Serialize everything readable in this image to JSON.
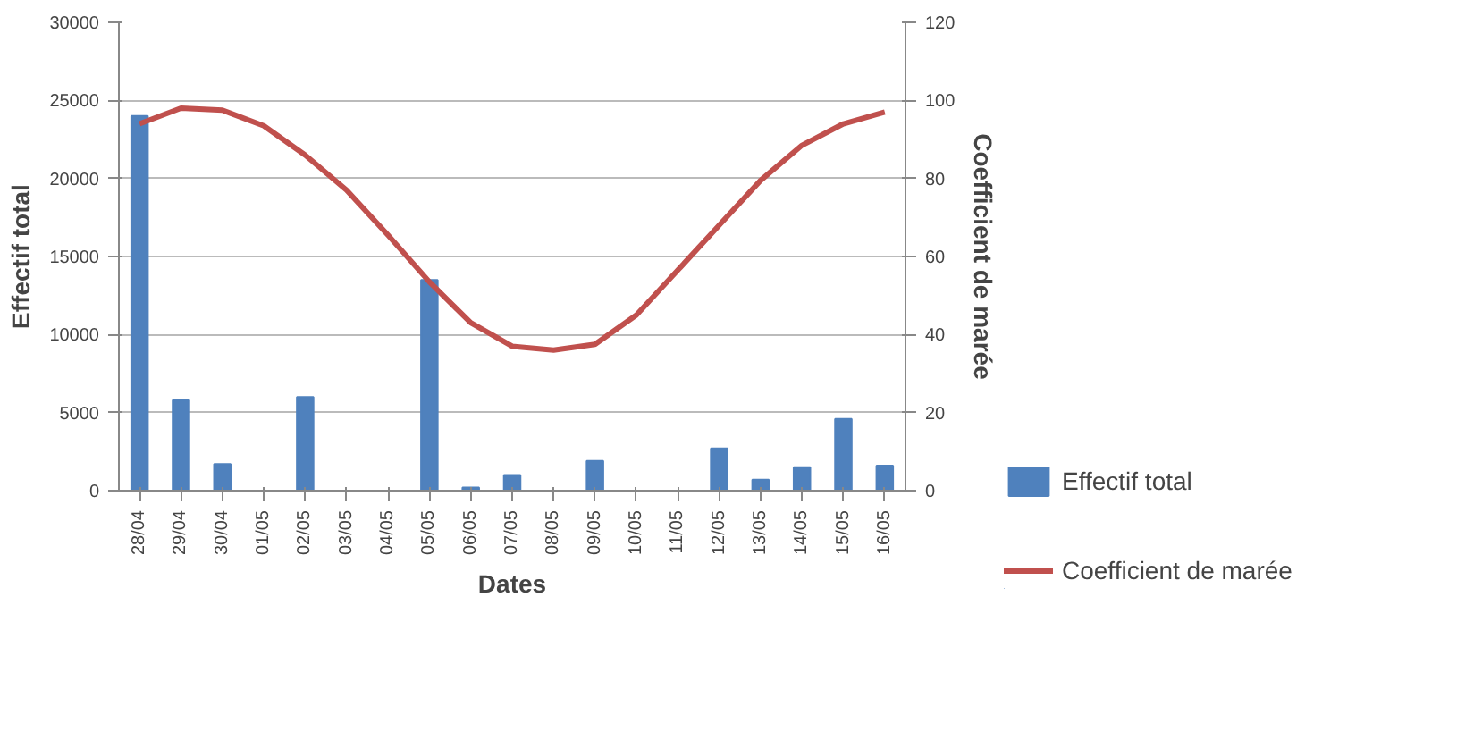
{
  "chart_data": {
    "type": "bar",
    "xlabel": "Dates",
    "ylabel": "Effectif total",
    "y2label": "Coefficient de marée",
    "categories": [
      "28/04",
      "29/04",
      "30/04",
      "01/05",
      "02/05",
      "03/05",
      "04/05",
      "05/05",
      "06/05",
      "07/05",
      "08/05",
      "09/05",
      "10/05",
      "11/05",
      "12/05",
      "13/05",
      "14/05",
      "15/05",
      "16/05"
    ],
    "series": [
      {
        "name": "Effectif total",
        "type": "bar",
        "color": "#4f81bd",
        "values": [
          24000,
          5800,
          1700,
          0,
          6000,
          0,
          0,
          13500,
          200,
          1000,
          0,
          1900,
          0,
          0,
          2700,
          700,
          1500,
          4600,
          1600
        ]
      },
      {
        "name": "Coefficient de marée",
        "type": "line",
        "axis": "y2",
        "color": "#c0504d",
        "values": [
          94,
          98,
          97.5,
          93.5,
          86,
          77,
          65.5,
          53.5,
          43,
          37,
          36,
          37.5,
          45,
          56.5,
          68,
          79.5,
          88.5,
          94,
          97
        ]
      }
    ],
    "ylim": [
      0,
      30000
    ],
    "yticks": [
      0,
      5000,
      10000,
      15000,
      20000,
      25000,
      30000
    ],
    "y2lim": [
      0,
      120
    ],
    "y2ticks": [
      0,
      20,
      40,
      60,
      80,
      100,
      120
    ],
    "grid": "y",
    "legend": "bottom right"
  }
}
